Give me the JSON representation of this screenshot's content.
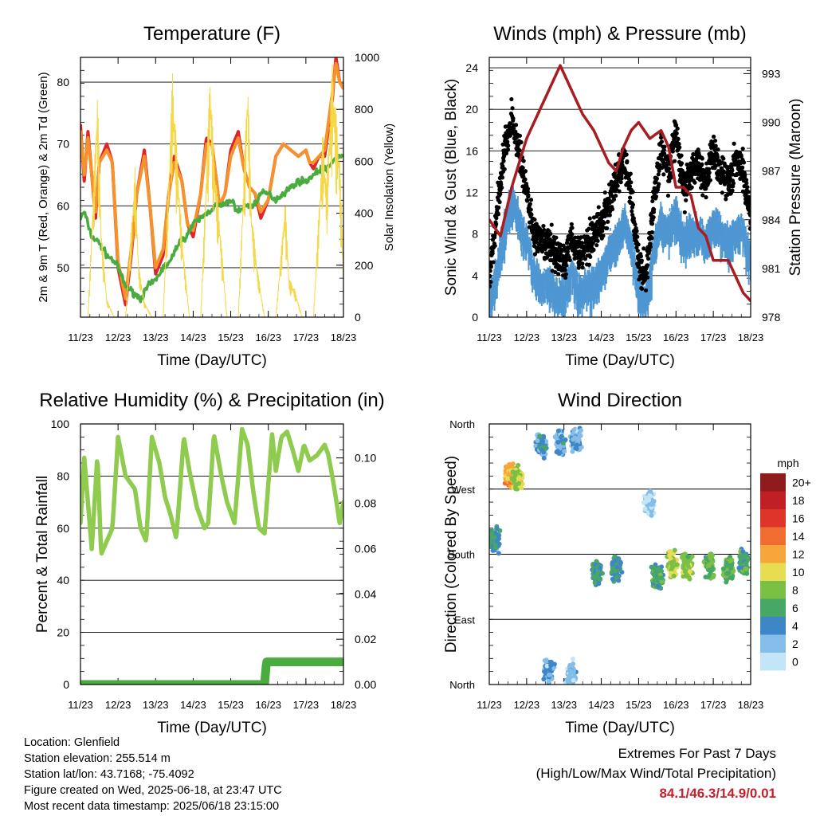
{
  "station": {
    "location": "Location: Glenfield",
    "elevation": "Station elevation: 255.514 m",
    "latlon": "Station lat/lon: 43.7168; -75.4092",
    "created": "Figure created on Wed, 2025-06-18, at 23:47 UTC",
    "latest": "Most recent data timestamp: 2025/06/18 23:15:00"
  },
  "extremes": {
    "title": "Extremes For Past 7 Days",
    "subtitle": "(High/Low/Max Wind/Total Precipitation)",
    "values": "84.1/46.3/14.9/0.01"
  },
  "chart_data": [
    {
      "type": "line",
      "title": "Temperature (F)",
      "xlabel": "Time (Day/UTC)",
      "ylabel": "2m & 9m T (Red, Orange) & 2m Td (Green)",
      "ylabel_right": "Solar Insolation (Yellow)",
      "x_ticks": [
        "11/23",
        "12/23",
        "13/23",
        "14/23",
        "15/23",
        "16/23",
        "17/23",
        "18/23"
      ],
      "xlim": [
        0,
        7
      ],
      "ylim": [
        42,
        84
      ],
      "y_ticks": [
        50,
        60,
        70,
        80
      ],
      "ylim_right": [
        0,
        1000
      ],
      "y_ticks_right": [
        0,
        200,
        400,
        600,
        800,
        1000
      ],
      "grid": true,
      "series": [
        {
          "name": "2m T",
          "color": "#e0252a",
          "x": [
            0,
            0.1,
            0.2,
            0.4,
            0.5,
            0.7,
            0.85,
            1,
            1.2,
            1.35,
            1.5,
            1.7,
            1.85,
            2,
            2.2,
            2.35,
            2.5,
            2.7,
            2.85,
            3,
            3.2,
            3.35,
            3.5,
            3.7,
            3.85,
            4,
            4.2,
            4.35,
            4.5,
            4.65,
            4.8,
            5,
            5.2,
            5.4,
            5.6,
            5.8,
            6,
            6.1,
            6.2,
            6.35,
            6.5,
            6.7,
            6.8,
            6.9,
            7
          ],
          "values": [
            73,
            64,
            72,
            58,
            67,
            70,
            67,
            50,
            44,
            52,
            62,
            69,
            60,
            49,
            52,
            62,
            68,
            64,
            57,
            55,
            62,
            71,
            70,
            60,
            62,
            69,
            72,
            66,
            63,
            62,
            58,
            61,
            68,
            70,
            69,
            68,
            69,
            67,
            66,
            68,
            68,
            77,
            84,
            80,
            79
          ]
        },
        {
          "name": "9m T",
          "color": "#f5922b",
          "x": [
            0,
            0.1,
            0.2,
            0.4,
            0.5,
            0.7,
            0.85,
            1,
            1.2,
            1.35,
            1.5,
            1.7,
            1.85,
            2,
            2.2,
            2.35,
            2.5,
            2.7,
            2.85,
            3,
            3.2,
            3.35,
            3.5,
            3.7,
            3.85,
            4,
            4.2,
            4.35,
            4.5,
            4.65,
            4.8,
            5,
            5.2,
            5.4,
            5.6,
            5.8,
            6,
            6.1,
            6.2,
            6.35,
            6.5,
            6.7,
            6.8,
            6.9,
            7
          ],
          "values": [
            72,
            65,
            71,
            59,
            67,
            69,
            67,
            51,
            45,
            53,
            62,
            68,
            60,
            50,
            53,
            62,
            67,
            64,
            57,
            56,
            62,
            70,
            70,
            60,
            62,
            68,
            71,
            66,
            63,
            62,
            59,
            61,
            68,
            70,
            69,
            68,
            69,
            67,
            67,
            68,
            69,
            78,
            83,
            80,
            79
          ]
        },
        {
          "name": "2m Td",
          "color": "#4aac3f",
          "x": [
            0,
            0.1,
            0.3,
            0.5,
            0.7,
            0.9,
            1,
            1.2,
            1.4,
            1.6,
            1.8,
            2,
            2.2,
            2.4,
            2.6,
            2.8,
            3,
            3.2,
            3.4,
            3.6,
            3.8,
            4,
            4.2,
            4.4,
            4.6,
            4.8,
            5,
            5.2,
            5.4,
            5.6,
            5.8,
            6,
            6.2,
            6.4,
            6.6,
            6.8,
            7
          ],
          "values": [
            58,
            59,
            55,
            54,
            52,
            51,
            50,
            47,
            46,
            45,
            47,
            48,
            50,
            51,
            54,
            55,
            57,
            58,
            59,
            60,
            60,
            61,
            59,
            60,
            60,
            62,
            62,
            61,
            62,
            63,
            64,
            64,
            65,
            66,
            66,
            68,
            68
          ]
        },
        {
          "name": "Solar Insolation",
          "color": "#f5d84a",
          "axis": "right",
          "x": [
            0,
            0.2,
            0.45,
            0.55,
            0.7,
            0.9,
            1.2,
            1.45,
            1.55,
            1.7,
            1.9,
            2.2,
            2.45,
            2.55,
            2.7,
            2.9,
            3.2,
            3.45,
            3.55,
            3.7,
            3.9,
            4.2,
            4.45,
            4.55,
            4.7,
            4.9,
            5.2,
            5.45,
            5.55,
            5.7,
            5.9,
            6.2,
            6.45,
            6.55,
            6.7,
            6.9,
            7
          ],
          "values": [
            0,
            0,
            880,
            350,
            70,
            0,
            0,
            580,
            200,
            60,
            0,
            0,
            950,
            700,
            320,
            0,
            0,
            960,
            640,
            380,
            0,
            0,
            950,
            420,
            200,
            0,
            0,
            460,
            150,
            110,
            0,
            0,
            720,
            520,
            980,
            620,
            180
          ]
        }
      ]
    },
    {
      "type": "line",
      "title": "Winds (mph) & Pressure (mb)",
      "xlabel": "Time (Day/UTC)",
      "ylabel": "Sonic Wind & Gust (Blue, Black)",
      "ylabel_right": "Station Pressure (Maroon)",
      "x_ticks": [
        "11/23",
        "12/23",
        "13/23",
        "14/23",
        "15/23",
        "16/23",
        "17/23",
        "18/23"
      ],
      "xlim": [
        0,
        7
      ],
      "ylim": [
        0,
        25
      ],
      "y_ticks": [
        0,
        4,
        8,
        12,
        16,
        20,
        24
      ],
      "ylim_right": [
        978,
        994
      ],
      "y_ticks_right": [
        978,
        981,
        984,
        987,
        990,
        993
      ],
      "grid": true,
      "series": [
        {
          "name": "Sonic Wind",
          "color": "#4f97d2",
          "x": [
            0,
            0.2,
            0.4,
            0.6,
            0.8,
            1,
            1.2,
            1.4,
            1.6,
            1.8,
            2,
            2.2,
            2.4,
            2.6,
            2.8,
            3,
            3.2,
            3.4,
            3.6,
            3.8,
            4,
            4.2,
            4.4,
            4.6,
            4.8,
            5,
            5.2,
            5.4,
            5.6,
            5.8,
            6,
            6.2,
            6.4,
            6.6,
            6.8,
            7
          ],
          "values": [
            2,
            5,
            9,
            12,
            10,
            8,
            5,
            4,
            4,
            3,
            3,
            5,
            3,
            4,
            4,
            5,
            7,
            8,
            10,
            8,
            3,
            2,
            7,
            10,
            9,
            11,
            8,
            9,
            9,
            8,
            10,
            9,
            8,
            9,
            9,
            6
          ]
        },
        {
          "name": "Gust",
          "color": "#000000",
          "x": [
            0,
            0.2,
            0.4,
            0.6,
            0.8,
            1,
            1.2,
            1.4,
            1.6,
            1.8,
            2,
            2.2,
            2.4,
            2.6,
            2.8,
            3,
            3.2,
            3.4,
            3.6,
            3.8,
            4,
            4.2,
            4.4,
            4.6,
            4.8,
            5,
            5.2,
            5.4,
            5.6,
            5.8,
            6,
            6.2,
            6.4,
            6.6,
            6.8,
            7
          ],
          "values": [
            4,
            10,
            16,
            19,
            16,
            12,
            8,
            7,
            7,
            6,
            5,
            8,
            6,
            7,
            8,
            9,
            11,
            13,
            15,
            12,
            5,
            4,
            11,
            16,
            14,
            18,
            12,
            14,
            15,
            13,
            16,
            14,
            13,
            15,
            14,
            10
          ]
        },
        {
          "name": "Station Pressure",
          "color": "#a81d22",
          "axis": "right",
          "x": [
            0,
            0.3,
            0.6,
            0.8,
            1,
            1.3,
            1.6,
            1.9,
            2.2,
            2.5,
            2.8,
            3,
            3.2,
            3.4,
            3.6,
            3.8,
            4,
            4.3,
            4.6,
            4.8,
            5,
            5.2,
            5.4,
            5.6,
            5.8,
            6,
            6.2,
            6.4,
            6.6,
            6.8,
            7
          ],
          "values": [
            984,
            983,
            986,
            987.5,
            989,
            990.5,
            992,
            993.5,
            992,
            990.5,
            989.5,
            988.5,
            987.5,
            987,
            988.5,
            989.5,
            990,
            989,
            989.5,
            988.5,
            986,
            986,
            985.5,
            983.5,
            983,
            981.5,
            981.5,
            981.5,
            980.5,
            979.5,
            979
          ]
        }
      ]
    },
    {
      "type": "line",
      "title": "Relative Humidity (%) & Precipitation (in)",
      "xlabel": "Time (Day/UTC)",
      "ylabel": "Percent & Total Rainfall",
      "x_ticks": [
        "11/23",
        "12/23",
        "13/23",
        "14/23",
        "15/23",
        "16/23",
        "17/23",
        "18/23"
      ],
      "xlim": [
        0,
        7
      ],
      "ylim": [
        0,
        100
      ],
      "y_ticks": [
        0,
        20,
        40,
        60,
        80,
        100
      ],
      "ylim_right": [
        0,
        0.115
      ],
      "y_ticks_right": [
        "0.00",
        "0.02",
        "0.04",
        "0.06",
        "0.08",
        "0.10"
      ],
      "grid": true,
      "series": [
        {
          "name": "Relative Humidity",
          "color": "#8fcb4f",
          "x": [
            0,
            0.1,
            0.3,
            0.45,
            0.55,
            0.7,
            0.85,
            1,
            1.2,
            1.45,
            1.6,
            1.75,
            1.9,
            2.1,
            2.25,
            2.4,
            2.55,
            2.75,
            2.9,
            3.1,
            3.3,
            3.4,
            3.55,
            3.75,
            3.9,
            4.1,
            4.3,
            4.45,
            4.6,
            4.75,
            4.9,
            5.1,
            5.2,
            5.35,
            5.5,
            5.65,
            5.8,
            5.95,
            6.1,
            6.3,
            6.5,
            6.6,
            6.75,
            6.9,
            7
          ],
          "values": [
            62,
            87,
            52,
            88,
            50,
            55,
            60,
            95,
            80,
            75,
            60,
            55,
            95,
            85,
            72,
            65,
            56,
            95,
            82,
            68,
            60,
            62,
            96,
            80,
            70,
            62,
            98,
            92,
            74,
            60,
            58,
            96,
            82,
            95,
            97,
            90,
            82,
            92,
            86,
            88,
            92,
            88,
            76,
            62,
            70
          ]
        },
        {
          "name": "Total Precipitation",
          "color": "#4aac3f",
          "axis": "right",
          "x": [
            0,
            4.9,
            4.95,
            7
          ],
          "values": [
            0,
            0,
            0.01,
            0.01
          ]
        }
      ]
    },
    {
      "type": "scatter",
      "title": "Wind Direction",
      "xlabel": "Time (Day/UTC)",
      "ylabel": "Direction (Colored By Speed)",
      "x_ticks": [
        "11/23",
        "12/23",
        "13/23",
        "14/23",
        "15/23",
        "16/23",
        "17/23",
        "18/23"
      ],
      "xlim": [
        0,
        7
      ],
      "ylim": [
        0,
        360
      ],
      "y_ticks": [
        "North",
        "East",
        "South",
        "West",
        "North"
      ],
      "grid": true,
      "legend": {
        "title": "mph",
        "labels": [
          "0",
          "2",
          "4",
          "6",
          "8",
          "10",
          "12",
          "14",
          "16",
          "18",
          "20+"
        ],
        "colors": [
          "#c3e5f8",
          "#84bde8",
          "#3f86c6",
          "#47a767",
          "#7bbf45",
          "#e7dd52",
          "#f6a53a",
          "#f06c30",
          "#dd3529",
          "#c11f26",
          "#901b1d"
        ],
        "placement": "right"
      },
      "clusters": [
        {
          "x": 0.15,
          "dir": 200,
          "speed": 5
        },
        {
          "x": 0.55,
          "dir": 290,
          "speed": 12
        },
        {
          "x": 0.75,
          "dir": 285,
          "speed": 9
        },
        {
          "x": 1.4,
          "dir": 330,
          "speed": 4
        },
        {
          "x": 1.9,
          "dir": 335,
          "speed": 3
        },
        {
          "x": 2.3,
          "dir": 340,
          "speed": 3
        },
        {
          "x": 1.6,
          "dir": 20,
          "speed": 3
        },
        {
          "x": 2.2,
          "dir": 15,
          "speed": 2
        },
        {
          "x": 2.9,
          "dir": 155,
          "speed": 5
        },
        {
          "x": 3.4,
          "dir": 160,
          "speed": 5
        },
        {
          "x": 4.3,
          "dir": 250,
          "speed": 1
        },
        {
          "x": 4.5,
          "dir": 150,
          "speed": 6
        },
        {
          "x": 4.9,
          "dir": 165,
          "speed": 9
        },
        {
          "x": 5.3,
          "dir": 165,
          "speed": 8
        },
        {
          "x": 5.9,
          "dir": 165,
          "speed": 7
        },
        {
          "x": 6.4,
          "dir": 160,
          "speed": 7
        },
        {
          "x": 6.8,
          "dir": 170,
          "speed": 6
        }
      ]
    }
  ]
}
